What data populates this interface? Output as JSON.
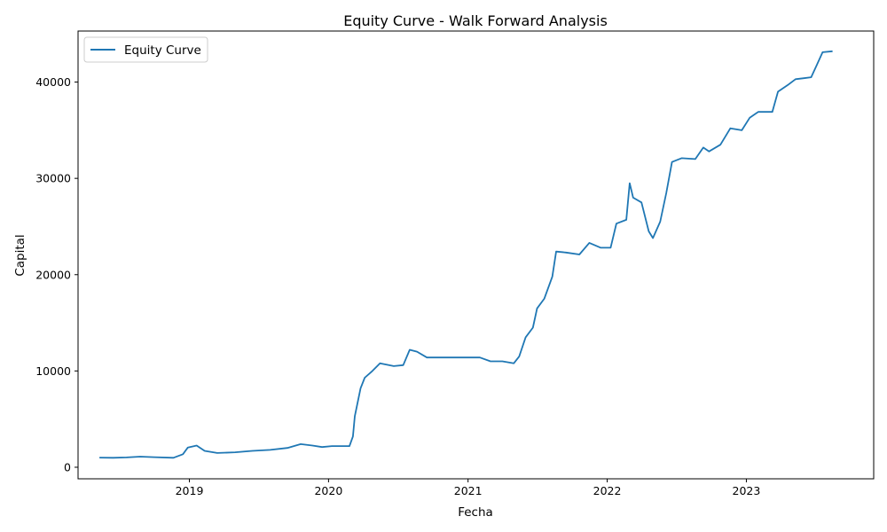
{
  "chart_data": {
    "type": "line",
    "title": "Equity Curve - Walk Forward Analysis",
    "xlabel": "Fecha",
    "ylabel": "Capital",
    "x_type": "date",
    "xlim": [
      "2018-03-15",
      "2023-12-01"
    ],
    "ylim": [
      -1200,
      45300
    ],
    "x_ticks": [
      "2019",
      "2020",
      "2021",
      "2022",
      "2023"
    ],
    "y_ticks": [
      0,
      10000,
      20000,
      30000,
      40000
    ],
    "grid": false,
    "legend_position": "top-left",
    "series": [
      {
        "name": "Equity Curve",
        "color": "#1f77b4",
        "points": [
          [
            "2018-05-10",
            1000
          ],
          [
            "2018-06-15",
            980
          ],
          [
            "2018-07-20",
            1020
          ],
          [
            "2018-08-25",
            1100
          ],
          [
            "2018-10-01",
            1050
          ],
          [
            "2018-11-20",
            980
          ],
          [
            "2018-12-15",
            1350
          ],
          [
            "2018-12-28",
            2050
          ],
          [
            "2019-01-20",
            2250
          ],
          [
            "2019-02-10",
            1700
          ],
          [
            "2019-03-15",
            1480
          ],
          [
            "2019-05-01",
            1550
          ],
          [
            "2019-06-15",
            1700
          ],
          [
            "2019-08-01",
            1800
          ],
          [
            "2019-09-15",
            2000
          ],
          [
            "2019-10-20",
            2400
          ],
          [
            "2019-11-20",
            2250
          ],
          [
            "2019-12-15",
            2100
          ],
          [
            "2020-01-10",
            2200
          ],
          [
            "2020-02-25",
            2200
          ],
          [
            "2020-03-05",
            3200
          ],
          [
            "2020-03-10",
            5300
          ],
          [
            "2020-03-25",
            8200
          ],
          [
            "2020-04-05",
            9300
          ],
          [
            "2020-04-25",
            10000
          ],
          [
            "2020-05-15",
            10800
          ],
          [
            "2020-06-20",
            10500
          ],
          [
            "2020-07-15",
            10600
          ],
          [
            "2020-08-01",
            12200
          ],
          [
            "2020-08-20",
            12000
          ],
          [
            "2020-09-15",
            11400
          ],
          [
            "2020-10-30",
            11400
          ],
          [
            "2020-12-15",
            11400
          ],
          [
            "2021-02-01",
            11400
          ],
          [
            "2021-03-01",
            11000
          ],
          [
            "2021-04-01",
            11000
          ],
          [
            "2021-05-01",
            10800
          ],
          [
            "2021-05-15",
            11500
          ],
          [
            "2021-06-01",
            13500
          ],
          [
            "2021-06-20",
            14500
          ],
          [
            "2021-07-01",
            16500
          ],
          [
            "2021-07-20",
            17500
          ],
          [
            "2021-08-10",
            19800
          ],
          [
            "2021-08-20",
            22400
          ],
          [
            "2021-09-15",
            22300
          ],
          [
            "2021-10-20",
            22100
          ],
          [
            "2021-11-15",
            23300
          ],
          [
            "2021-12-15",
            22800
          ],
          [
            "2022-01-10",
            22800
          ],
          [
            "2022-01-25",
            25300
          ],
          [
            "2022-02-20",
            25700
          ],
          [
            "2022-03-01",
            29500
          ],
          [
            "2022-03-10",
            28000
          ],
          [
            "2022-04-01",
            27500
          ],
          [
            "2022-04-20",
            24500
          ],
          [
            "2022-05-01",
            23800
          ],
          [
            "2022-05-20",
            25500
          ],
          [
            "2022-06-05",
            28500
          ],
          [
            "2022-06-20",
            31700
          ],
          [
            "2022-07-15",
            32100
          ],
          [
            "2022-08-20",
            32000
          ],
          [
            "2022-09-10",
            33200
          ],
          [
            "2022-09-25",
            32800
          ],
          [
            "2022-10-25",
            33500
          ],
          [
            "2022-11-20",
            35200
          ],
          [
            "2022-12-20",
            35000
          ],
          [
            "2023-01-10",
            36300
          ],
          [
            "2023-02-01",
            36900
          ],
          [
            "2023-03-10",
            36900
          ],
          [
            "2023-03-25",
            39000
          ],
          [
            "2023-04-20",
            39700
          ],
          [
            "2023-05-10",
            40300
          ],
          [
            "2023-06-01",
            40400
          ],
          [
            "2023-06-20",
            40500
          ],
          [
            "2023-07-05",
            41800
          ],
          [
            "2023-07-20",
            43100
          ],
          [
            "2023-08-15",
            43200
          ]
        ]
      }
    ]
  }
}
